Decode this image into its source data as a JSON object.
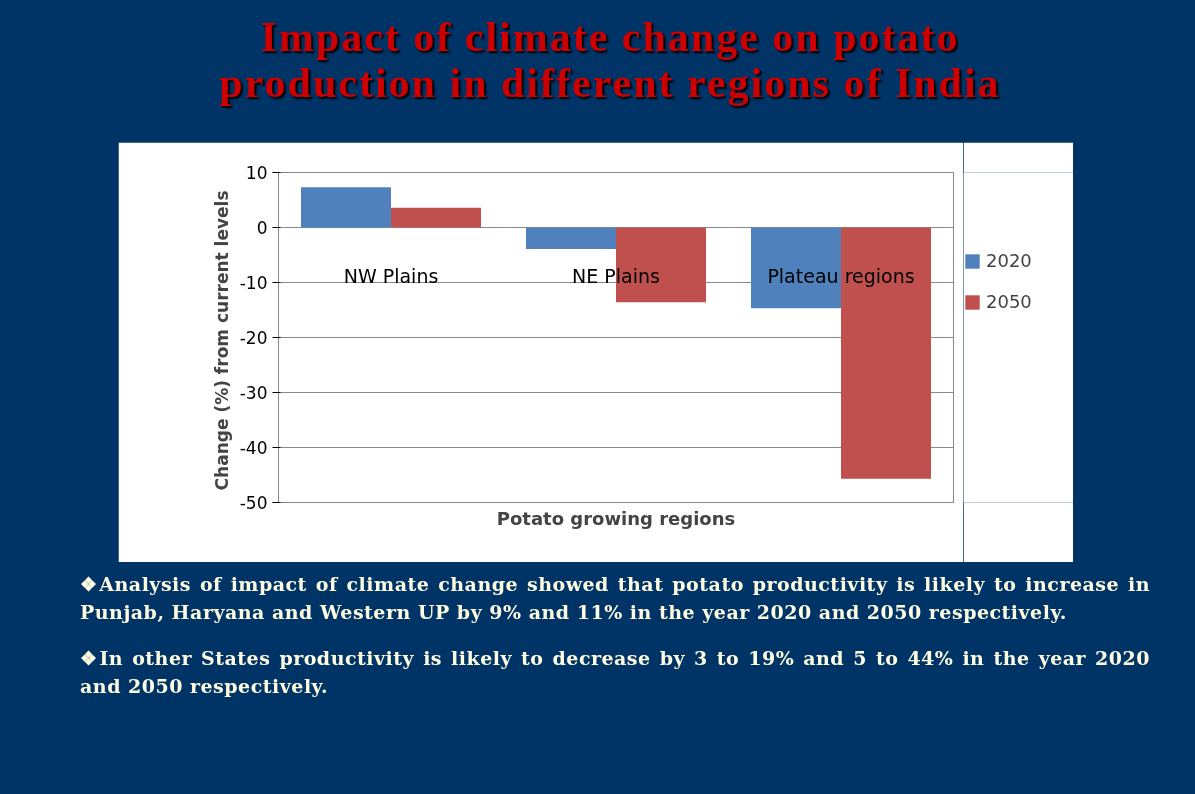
{
  "chart_data": {
    "type": "bar",
    "title": "Impact of climate change on potato production in different regions of India",
    "xlabel": "Potato growing regions",
    "ylabel": "Change  (%) from current levels",
    "categories": [
      "NW Plains",
      "NE Plains",
      "Plateau regions"
    ],
    "series": [
      {
        "name": "2020",
        "color": "#4f81bd",
        "values": [
          7.3,
          -3.9,
          -14.7
        ]
      },
      {
        "name": "2050",
        "color": "#c0504d",
        "values": [
          3.6,
          -13.6,
          -45.7
        ]
      }
    ],
    "ylim": [
      -50,
      10
    ],
    "yticks": [
      -50,
      -40,
      -30,
      -20,
      -10,
      0,
      10
    ],
    "grid": "y",
    "legend": "right",
    "annotations": [
      "❖Analysis of impact of climate change showed that potato    productivity is likely to increase in Punjab, Haryana and Western UP by 9% and 11% in the year 2020 and 2050 respectively.",
      "❖In other States productivity is likely to decrease by 3 to 19% and 5 to 44% in the year 2020 and 2050 respectively."
    ]
  }
}
